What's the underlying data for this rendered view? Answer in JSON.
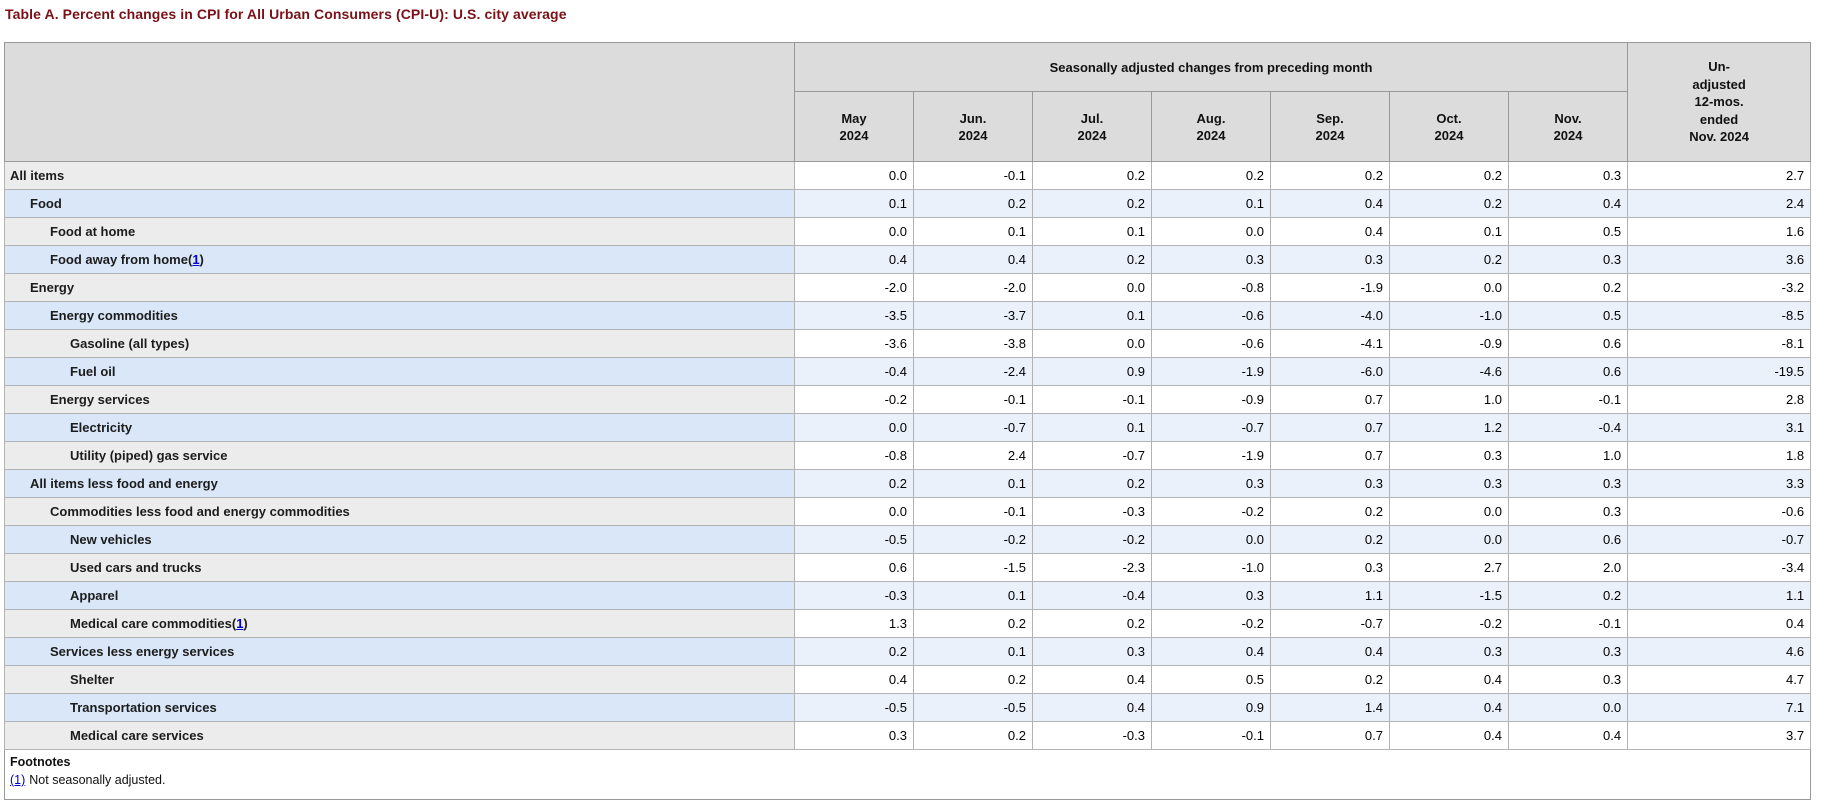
{
  "title": "Table A. Percent changes in CPI for All Urban Consumers (CPI-U): U.S. city average",
  "colors": {
    "title": "#7b1118",
    "header_bg": "#dcdcdc",
    "link": "#0000cc",
    "row_gray_label": "#ececec",
    "row_gray_data": "#ffffff",
    "row_blue_label": "#d9e7f8",
    "row_blue_data": "#eaf1fb"
  },
  "table": {
    "group_header": "Seasonally adjusted changes from preceding month",
    "month_columns": [
      {
        "line1": "May",
        "line2": "2024"
      },
      {
        "line1": "Jun.",
        "line2": "2024"
      },
      {
        "line1": "Jul.",
        "line2": "2024"
      },
      {
        "line1": "Aug.",
        "line2": "2024"
      },
      {
        "line1": "Sep.",
        "line2": "2024"
      },
      {
        "line1": "Oct.",
        "line2": "2024"
      },
      {
        "line1": "Nov.",
        "line2": "2024"
      }
    ],
    "unadjusted_column_lines": [
      "Un-",
      "adjusted",
      "12-mos.",
      "ended",
      "Nov. 2024"
    ],
    "rows": [
      {
        "label": "All items",
        "indent": 0,
        "footnote": null,
        "values": [
          "0.0",
          "-0.1",
          "0.2",
          "0.2",
          "0.2",
          "0.2",
          "0.3",
          "2.7"
        ]
      },
      {
        "label": "Food",
        "indent": 1,
        "footnote": null,
        "values": [
          "0.1",
          "0.2",
          "0.2",
          "0.1",
          "0.4",
          "0.2",
          "0.4",
          "2.4"
        ]
      },
      {
        "label": "Food at home",
        "indent": 2,
        "footnote": null,
        "values": [
          "0.0",
          "0.1",
          "0.1",
          "0.0",
          "0.4",
          "0.1",
          "0.5",
          "1.6"
        ]
      },
      {
        "label": "Food away from home",
        "indent": 2,
        "footnote": "1",
        "values": [
          "0.4",
          "0.4",
          "0.2",
          "0.3",
          "0.3",
          "0.2",
          "0.3",
          "3.6"
        ]
      },
      {
        "label": "Energy",
        "indent": 1,
        "footnote": null,
        "values": [
          "-2.0",
          "-2.0",
          "0.0",
          "-0.8",
          "-1.9",
          "0.0",
          "0.2",
          "-3.2"
        ]
      },
      {
        "label": "Energy commodities",
        "indent": 2,
        "footnote": null,
        "values": [
          "-3.5",
          "-3.7",
          "0.1",
          "-0.6",
          "-4.0",
          "-1.0",
          "0.5",
          "-8.5"
        ]
      },
      {
        "label": "Gasoline (all types)",
        "indent": 3,
        "footnote": null,
        "values": [
          "-3.6",
          "-3.8",
          "0.0",
          "-0.6",
          "-4.1",
          "-0.9",
          "0.6",
          "-8.1"
        ]
      },
      {
        "label": "Fuel oil",
        "indent": 3,
        "footnote": null,
        "values": [
          "-0.4",
          "-2.4",
          "0.9",
          "-1.9",
          "-6.0",
          "-4.6",
          "0.6",
          "-19.5"
        ]
      },
      {
        "label": "Energy services",
        "indent": 2,
        "footnote": null,
        "values": [
          "-0.2",
          "-0.1",
          "-0.1",
          "-0.9",
          "0.7",
          "1.0",
          "-0.1",
          "2.8"
        ]
      },
      {
        "label": "Electricity",
        "indent": 3,
        "footnote": null,
        "values": [
          "0.0",
          "-0.7",
          "0.1",
          "-0.7",
          "0.7",
          "1.2",
          "-0.4",
          "3.1"
        ]
      },
      {
        "label": "Utility (piped) gas service",
        "indent": 3,
        "footnote": null,
        "values": [
          "-0.8",
          "2.4",
          "-0.7",
          "-1.9",
          "0.7",
          "0.3",
          "1.0",
          "1.8"
        ]
      },
      {
        "label": "All items less food and energy",
        "indent": 1,
        "footnote": null,
        "values": [
          "0.2",
          "0.1",
          "0.2",
          "0.3",
          "0.3",
          "0.3",
          "0.3",
          "3.3"
        ]
      },
      {
        "label": "Commodities less food and energy commodities",
        "indent": 2,
        "footnote": null,
        "values": [
          "0.0",
          "-0.1",
          "-0.3",
          "-0.2",
          "0.2",
          "0.0",
          "0.3",
          "-0.6"
        ]
      },
      {
        "label": "New vehicles",
        "indent": 3,
        "footnote": null,
        "values": [
          "-0.5",
          "-0.2",
          "-0.2",
          "0.0",
          "0.2",
          "0.0",
          "0.6",
          "-0.7"
        ]
      },
      {
        "label": "Used cars and trucks",
        "indent": 3,
        "footnote": null,
        "values": [
          "0.6",
          "-1.5",
          "-2.3",
          "-1.0",
          "0.3",
          "2.7",
          "2.0",
          "-3.4"
        ]
      },
      {
        "label": "Apparel",
        "indent": 3,
        "footnote": null,
        "values": [
          "-0.3",
          "0.1",
          "-0.4",
          "0.3",
          "1.1",
          "-1.5",
          "0.2",
          "1.1"
        ]
      },
      {
        "label": "Medical care commodities",
        "indent": 3,
        "footnote": "1",
        "values": [
          "1.3",
          "0.2",
          "0.2",
          "-0.2",
          "-0.7",
          "-0.2",
          "-0.1",
          "0.4"
        ]
      },
      {
        "label": "Services less energy services",
        "indent": 2,
        "footnote": null,
        "values": [
          "0.2",
          "0.1",
          "0.3",
          "0.4",
          "0.4",
          "0.3",
          "0.3",
          "4.6"
        ]
      },
      {
        "label": "Shelter",
        "indent": 3,
        "footnote": null,
        "values": [
          "0.4",
          "0.2",
          "0.4",
          "0.5",
          "0.2",
          "0.4",
          "0.3",
          "4.7"
        ]
      },
      {
        "label": "Transportation services",
        "indent": 3,
        "footnote": null,
        "values": [
          "-0.5",
          "-0.5",
          "0.4",
          "0.9",
          "1.4",
          "0.4",
          "0.0",
          "7.1"
        ]
      },
      {
        "label": "Medical care services",
        "indent": 3,
        "footnote": null,
        "values": [
          "0.3",
          "0.2",
          "-0.3",
          "-0.1",
          "0.7",
          "0.4",
          "0.4",
          "3.7"
        ]
      }
    ]
  },
  "footnotes": {
    "heading": "Footnotes",
    "items": [
      {
        "ref": "(1)",
        "text": "Not seasonally adjusted."
      }
    ]
  }
}
